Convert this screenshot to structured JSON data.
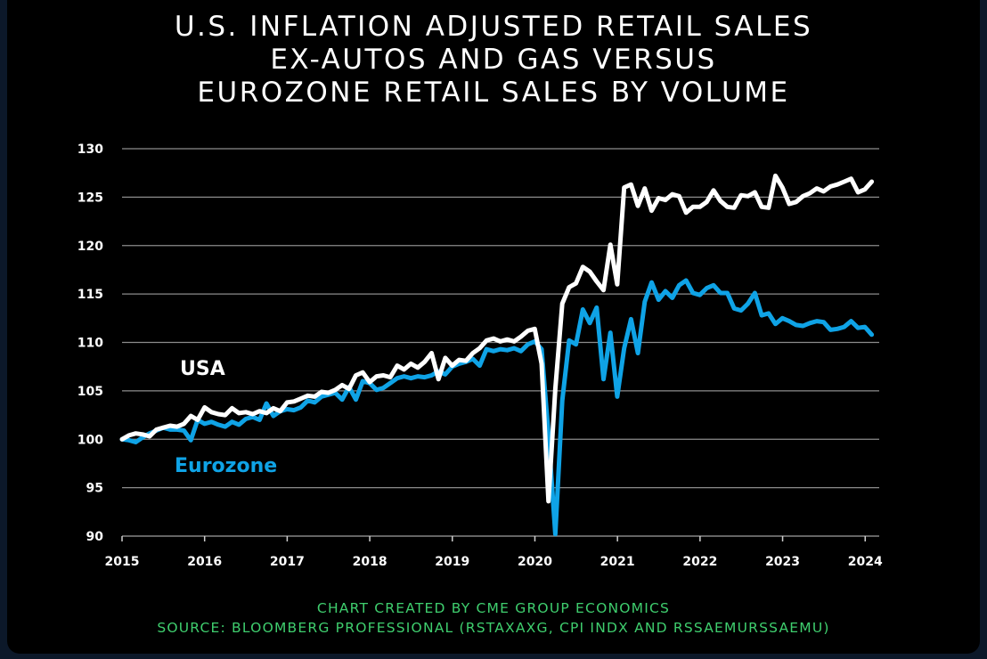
{
  "title_lines": [
    "U.S. INFLATION ADJUSTED RETAIL SALES",
    "EX-AUTOS AND GAS VERSUS",
    "EUROZONE RETAIL SALES BY VOLUME"
  ],
  "footer": {
    "credit": "CHART CREATED BY CME GROUP ECONOMICS",
    "source": "SOURCE: BLOOMBERG PROFESSIONAL (RSTAXAXG, CPI INDX AND RSSAEMURSSAEMU)"
  },
  "colors": {
    "background": "#000000",
    "usa": "#ffffff",
    "eurozone": "#0fa3e6",
    "grid": "#8c8c8c",
    "footer": "#3fce6e"
  },
  "chart_data": {
    "type": "line",
    "title": "U.S. INFLATION ADJUSTED RETAIL SALES EX-AUTOS AND GAS VERSUS EUROZONE RETAIL SALES BY VOLUME",
    "xlabel": "",
    "ylabel": "",
    "x_ticks": [
      "2015",
      "2016",
      "2017",
      "2018",
      "2019",
      "2020",
      "2021",
      "2022",
      "2023",
      "2024"
    ],
    "y_ticks": [
      90,
      95,
      100,
      105,
      110,
      115,
      120,
      125,
      130
    ],
    "xlim": [
      2015.0,
      2024.17
    ],
    "ylim": [
      90,
      130
    ],
    "grid": "horizontal",
    "legend": "inline labels",
    "series": [
      {
        "name": "USA",
        "label_position": "upper-left",
        "color": "#ffffff",
        "x_start": 2015.0,
        "x_step": 0.0833,
        "values": [
          100.0,
          100.4,
          100.6,
          100.5,
          100.3,
          101.0,
          101.2,
          101.4,
          101.3,
          101.6,
          102.4,
          102.0,
          103.3,
          102.8,
          102.6,
          102.5,
          103.2,
          102.7,
          102.8,
          102.6,
          102.9,
          102.7,
          103.2,
          102.9,
          103.8,
          103.9,
          104.2,
          104.5,
          104.4,
          104.9,
          104.8,
          105.1,
          105.6,
          105.2,
          106.6,
          106.9,
          105.9,
          106.5,
          106.6,
          106.4,
          107.6,
          107.2,
          107.8,
          107.4,
          108.0,
          108.9,
          106.2,
          108.4,
          107.6,
          108.2,
          108.1,
          108.9,
          109.4,
          110.2,
          110.4,
          110.1,
          110.3,
          110.1,
          110.6,
          111.2,
          111.4,
          107.8,
          93.6,
          105.2,
          114.0,
          115.7,
          116.1,
          117.8,
          117.3,
          116.3,
          115.4,
          120.1,
          116.0,
          126.0,
          126.3,
          124.1,
          125.9,
          123.6,
          124.9,
          124.7,
          125.3,
          125.1,
          123.4,
          124.0,
          124.0,
          124.5,
          125.7,
          124.6,
          124.0,
          123.9,
          125.2,
          125.1,
          125.5,
          124.0,
          123.9,
          127.2,
          126.0,
          124.3,
          124.5,
          125.1,
          125.4,
          125.9,
          125.6,
          126.1,
          126.3,
          126.6,
          126.9,
          125.5,
          125.8,
          126.6
        ]
      },
      {
        "name": "Eurozone",
        "label_position": "lower-left",
        "color": "#0fa3e6",
        "x_start": 2015.0,
        "x_step": 0.0833,
        "values": [
          100.0,
          99.9,
          99.7,
          100.2,
          100.6,
          100.9,
          101.2,
          101.0,
          101.0,
          100.9,
          99.9,
          102.0,
          101.6,
          101.8,
          101.5,
          101.3,
          101.8,
          101.5,
          102.1,
          102.3,
          102.0,
          103.7,
          102.4,
          102.9,
          103.1,
          103.0,
          103.3,
          104.0,
          103.8,
          104.4,
          104.6,
          104.8,
          104.1,
          105.4,
          104.1,
          106.0,
          105.8,
          105.1,
          105.3,
          105.8,
          106.3,
          106.5,
          106.3,
          106.5,
          106.4,
          106.6,
          107.0,
          106.7,
          107.5,
          107.8,
          108.0,
          108.3,
          107.6,
          109.3,
          109.1,
          109.3,
          109.2,
          109.4,
          109.1,
          109.8,
          110.1,
          109.3,
          100.5,
          90.2,
          104.0,
          110.2,
          109.8,
          113.4,
          112.0,
          113.6,
          106.2,
          111.0,
          104.4,
          109.4,
          112.4,
          108.9,
          114.2,
          116.2,
          114.4,
          115.3,
          114.6,
          115.9,
          116.4,
          115.1,
          114.9,
          115.6,
          115.9,
          115.1,
          115.1,
          113.5,
          113.3,
          114.0,
          115.1,
          112.8,
          113.0,
          111.9,
          112.5,
          112.2,
          111.8,
          111.7,
          112.0,
          112.2,
          112.1,
          111.3,
          111.4,
          111.6,
          112.2,
          111.5,
          111.6,
          110.8
        ]
      }
    ]
  }
}
